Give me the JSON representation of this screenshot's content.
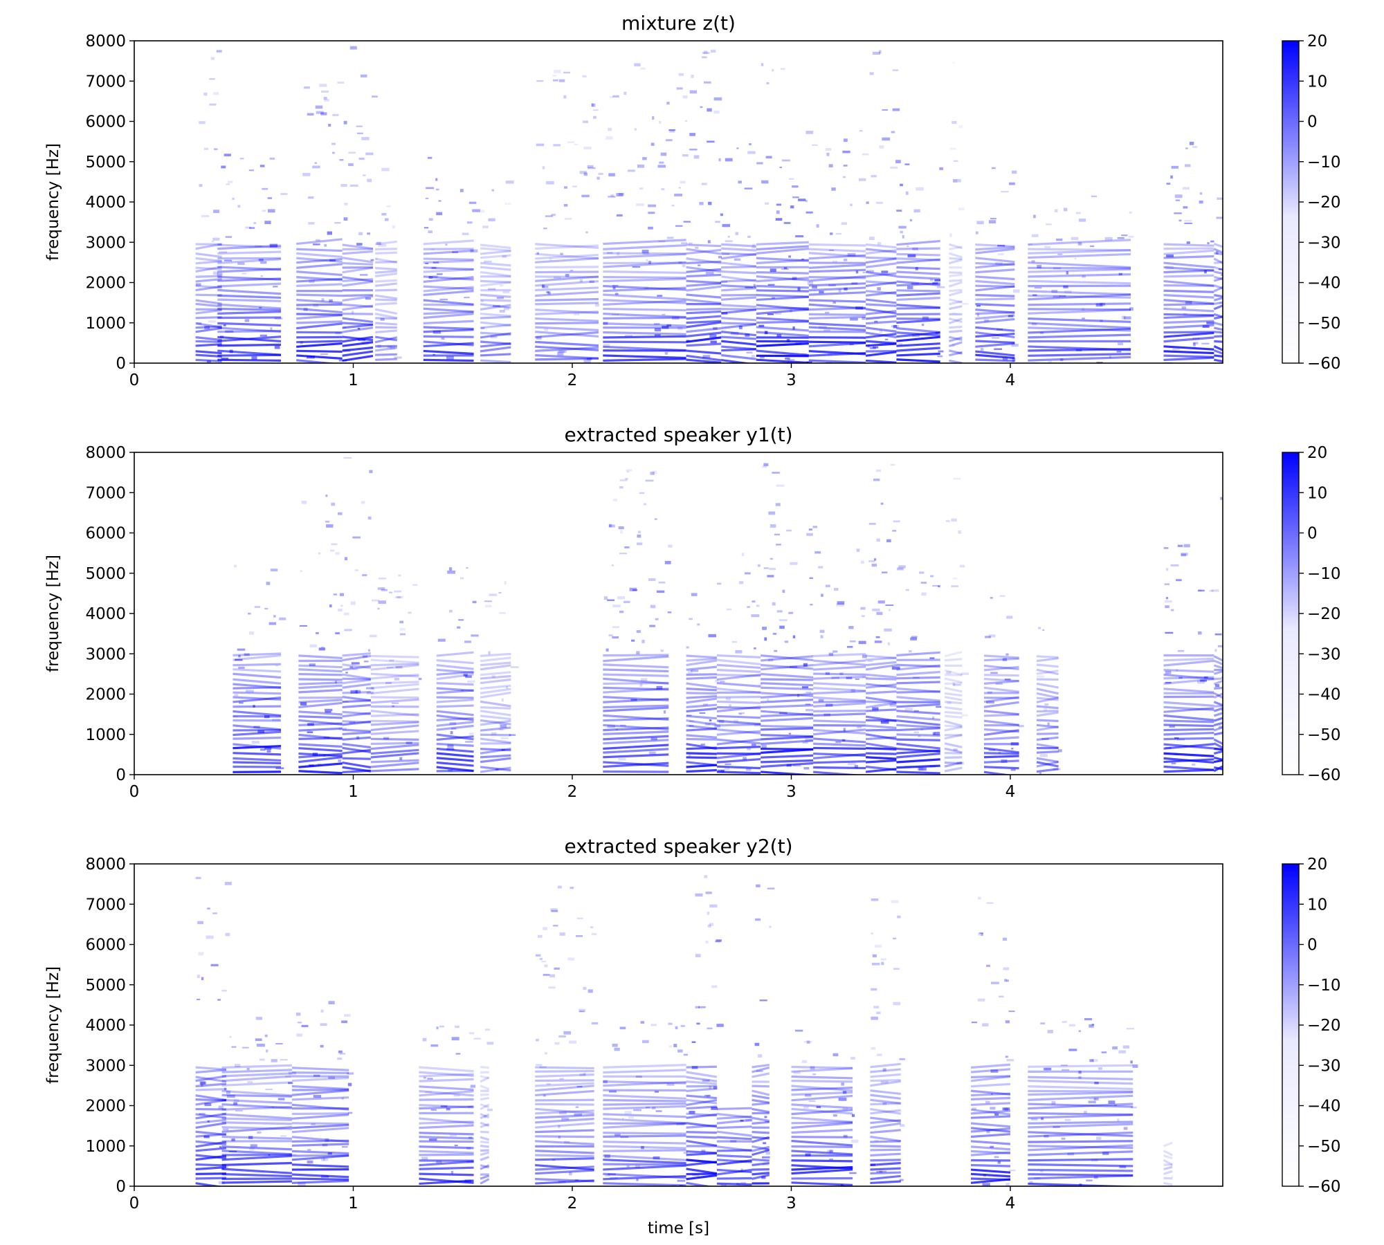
{
  "chart_data": [
    {
      "type": "heatmap",
      "title": "mixture z(t)",
      "xlabel": "",
      "ylabel": "frequency [Hz]",
      "xlim": [
        0,
        4.97
      ],
      "ylim": [
        0,
        8000
      ],
      "xticks": [
        "0",
        "1",
        "2",
        "3",
        "4"
      ],
      "yticks": [
        "0",
        "1000",
        "2000",
        "3000",
        "4000",
        "5000",
        "6000",
        "7000",
        "8000"
      ],
      "colorbar": {
        "range": [
          -60,
          20
        ],
        "ticks": [
          "20",
          "10",
          "0",
          "−10",
          "−20",
          "−30",
          "−40",
          "−50",
          "−60"
        ],
        "colormap": [
          "#ffffff",
          "#0000ff"
        ]
      },
      "segments": [
        {
          "t0": 0.28,
          "t1": 0.4,
          "fmax": 7800,
          "level": 0.75
        },
        {
          "t0": 0.38,
          "t1": 0.67,
          "fmax": 5300,
          "level": 0.9
        },
        {
          "t0": 0.74,
          "t1": 0.95,
          "fmax": 7000,
          "level": 0.9
        },
        {
          "t0": 0.95,
          "t1": 1.09,
          "fmax": 7900,
          "level": 0.85
        },
        {
          "t0": 1.1,
          "t1": 1.2,
          "fmax": 5000,
          "level": 0.5
        },
        {
          "t0": 1.32,
          "t1": 1.55,
          "fmax": 5200,
          "level": 0.8
        },
        {
          "t0": 1.58,
          "t1": 1.72,
          "fmax": 5000,
          "level": 0.5
        },
        {
          "t0": 1.83,
          "t1": 2.12,
          "fmax": 7500,
          "level": 0.65
        },
        {
          "t0": 2.14,
          "t1": 2.52,
          "fmax": 7700,
          "level": 0.8
        },
        {
          "t0": 2.52,
          "t1": 2.68,
          "fmax": 7900,
          "level": 0.95
        },
        {
          "t0": 2.68,
          "t1": 2.84,
          "fmax": 5500,
          "level": 0.8
        },
        {
          "t0": 2.84,
          "t1": 3.08,
          "fmax": 7900,
          "level": 0.95
        },
        {
          "t0": 3.08,
          "t1": 3.34,
          "fmax": 5800,
          "level": 0.85
        },
        {
          "t0": 3.34,
          "t1": 3.48,
          "fmax": 7800,
          "level": 0.85
        },
        {
          "t0": 3.48,
          "t1": 3.68,
          "fmax": 5200,
          "level": 0.95
        },
        {
          "t0": 3.72,
          "t1": 3.78,
          "fmax": 7500,
          "level": 0.4
        },
        {
          "t0": 3.84,
          "t1": 4.02,
          "fmax": 5000,
          "level": 0.85
        },
        {
          "t0": 4.08,
          "t1": 4.55,
          "fmax": 4300,
          "level": 0.75
        },
        {
          "t0": 4.7,
          "t1": 4.93,
          "fmax": 5800,
          "level": 0.9
        },
        {
          "t0": 4.93,
          "t1": 4.97,
          "fmax": 7800,
          "level": 0.9
        }
      ]
    },
    {
      "type": "heatmap",
      "title": "extracted speaker y1(t)",
      "xlabel": "",
      "ylabel": "frequency [Hz]",
      "xlim": [
        0,
        4.97
      ],
      "ylim": [
        0,
        8000
      ],
      "xticks": [
        "0",
        "1",
        "2",
        "3",
        "4"
      ],
      "yticks": [
        "0",
        "1000",
        "2000",
        "3000",
        "4000",
        "5000",
        "6000",
        "7000",
        "8000"
      ],
      "colorbar": {
        "range": [
          -60,
          20
        ],
        "ticks": [
          "20",
          "10",
          "0",
          "−10",
          "−20",
          "−30",
          "−40",
          "−50",
          "−60"
        ],
        "colormap": [
          "#ffffff",
          "#0000ff"
        ]
      },
      "segments": [
        {
          "t0": 0.45,
          "t1": 0.67,
          "fmax": 5300,
          "level": 0.9
        },
        {
          "t0": 0.75,
          "t1": 0.95,
          "fmax": 7000,
          "level": 0.9
        },
        {
          "t0": 0.95,
          "t1": 1.08,
          "fmax": 7900,
          "level": 0.85
        },
        {
          "t0": 1.08,
          "t1": 1.3,
          "fmax": 5000,
          "level": 0.6
        },
        {
          "t0": 1.38,
          "t1": 1.55,
          "fmax": 5200,
          "level": 0.8
        },
        {
          "t0": 1.58,
          "t1": 1.72,
          "fmax": 5200,
          "level": 0.55
        },
        {
          "t0": 2.14,
          "t1": 2.44,
          "fmax": 7700,
          "level": 0.85
        },
        {
          "t0": 2.52,
          "t1": 2.66,
          "fmax": 5300,
          "level": 0.9
        },
        {
          "t0": 2.66,
          "t1": 2.86,
          "fmax": 5800,
          "level": 0.75
        },
        {
          "t0": 2.86,
          "t1": 3.1,
          "fmax": 7900,
          "level": 0.95
        },
        {
          "t0": 3.1,
          "t1": 3.34,
          "fmax": 5800,
          "level": 0.8
        },
        {
          "t0": 3.34,
          "t1": 3.48,
          "fmax": 7800,
          "level": 0.9
        },
        {
          "t0": 3.48,
          "t1": 3.68,
          "fmax": 5200,
          "level": 0.95
        },
        {
          "t0": 3.7,
          "t1": 3.78,
          "fmax": 7500,
          "level": 0.35
        },
        {
          "t0": 3.88,
          "t1": 4.04,
          "fmax": 4500,
          "level": 0.75
        },
        {
          "t0": 4.12,
          "t1": 4.22,
          "fmax": 4300,
          "level": 0.6
        },
        {
          "t0": 4.7,
          "t1": 4.93,
          "fmax": 5800,
          "level": 0.9
        },
        {
          "t0": 4.93,
          "t1": 4.97,
          "fmax": 7800,
          "level": 0.9
        }
      ]
    },
    {
      "type": "heatmap",
      "title": "extracted speaker y2(t)",
      "xlabel": "time [s]",
      "ylabel": "frequency [Hz]",
      "xlim": [
        0,
        4.97
      ],
      "ylim": [
        0,
        8000
      ],
      "xticks": [
        "0",
        "1",
        "2",
        "3",
        "4"
      ],
      "yticks": [
        "0",
        "1000",
        "2000",
        "3000",
        "4000",
        "5000",
        "6000",
        "7000",
        "8000"
      ],
      "colorbar": {
        "range": [
          -60,
          20
        ],
        "ticks": [
          "20",
          "10",
          "0",
          "−10",
          "−20",
          "−30",
          "−40",
          "−50",
          "−60"
        ],
        "colormap": [
          "#ffffff",
          "#0000ff"
        ]
      },
      "segments": [
        {
          "t0": 0.28,
          "t1": 0.42,
          "fmax": 7800,
          "level": 0.9
        },
        {
          "t0": 0.4,
          "t1": 0.72,
          "fmax": 4300,
          "level": 0.8
        },
        {
          "t0": 0.72,
          "t1": 0.98,
          "fmax": 4700,
          "level": 0.85
        },
        {
          "t0": 1.3,
          "t1": 1.55,
          "fmax": 4300,
          "level": 0.75
        },
        {
          "t0": 1.58,
          "t1": 1.62,
          "fmax": 4300,
          "level": 0.4
        },
        {
          "t0": 1.83,
          "t1": 2.1,
          "fmax": 7500,
          "level": 0.7
        },
        {
          "t0": 2.14,
          "t1": 2.52,
          "fmax": 4300,
          "level": 0.7
        },
        {
          "t0": 2.52,
          "t1": 2.66,
          "fmax": 7900,
          "level": 0.95
        },
        {
          "t0": 2.66,
          "t1": 2.82,
          "fmax": 2000,
          "level": 0.85
        },
        {
          "t0": 2.82,
          "t1": 2.9,
          "fmax": 7800,
          "level": 0.85
        },
        {
          "t0": 3.0,
          "t1": 3.28,
          "fmax": 4000,
          "level": 0.85
        },
        {
          "t0": 3.36,
          "t1": 3.5,
          "fmax": 7800,
          "level": 0.7
        },
        {
          "t0": 3.82,
          "t1": 4.0,
          "fmax": 7500,
          "level": 0.85
        },
        {
          "t0": 4.08,
          "t1": 4.56,
          "fmax": 4300,
          "level": 0.8
        },
        {
          "t0": 4.7,
          "t1": 4.74,
          "fmax": 1000,
          "level": 0.25
        }
      ]
    }
  ]
}
